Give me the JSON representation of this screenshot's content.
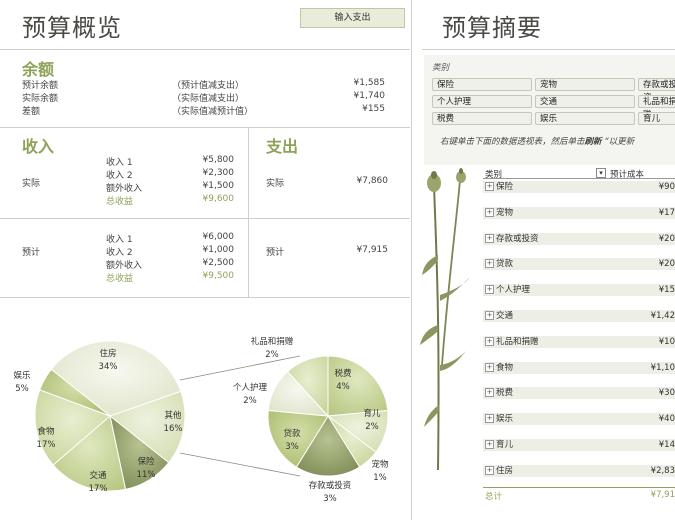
{
  "overview": {
    "title": "预算概览",
    "input_button": "输入支出",
    "balance": {
      "heading": "余额",
      "rows": [
        {
          "label": "预计余额",
          "note": "（预计值减支出）",
          "value": "¥1,585"
        },
        {
          "label": "实际余额",
          "note": "（实际值减支出）",
          "value": "¥1,740"
        },
        {
          "label": "差额",
          "note": "（实际值减预计值）",
          "value": "¥155"
        }
      ]
    },
    "income": {
      "heading": "收入",
      "actual": {
        "label": "实际",
        "items": [
          {
            "label": "收入 1",
            "value": "¥5,800"
          },
          {
            "label": "收入 2",
            "value": "¥2,300"
          },
          {
            "label": "额外收入",
            "value": "¥1,500"
          }
        ],
        "total_label": "总收益",
        "total_value": "¥9,600"
      },
      "projected": {
        "label": "预计",
        "items": [
          {
            "label": "收入 1",
            "value": "¥6,000"
          },
          {
            "label": "收入 2",
            "value": "¥1,000"
          },
          {
            "label": "额外收入",
            "value": "¥2,500"
          }
        ],
        "total_label": "总收益",
        "total_value": "¥9,500"
      }
    },
    "expense": {
      "heading": "支出",
      "actual": {
        "label": "实际",
        "value": "¥7,860"
      },
      "projected": {
        "label": "预计",
        "value": "¥7,915"
      }
    }
  },
  "chart_data": {
    "type": "pie",
    "main": {
      "slices": [
        {
          "label": "住房",
          "pct": "34%",
          "value": 34
        },
        {
          "label": "其他",
          "pct": "16%",
          "value": 16
        },
        {
          "label": "保险",
          "pct": "11%",
          "value": 11
        },
        {
          "label": "交通",
          "pct": "17%",
          "value": 17
        },
        {
          "label": "食物",
          "pct": "17%",
          "value": 17
        },
        {
          "label": "娱乐",
          "pct": "5%",
          "value": 5
        }
      ]
    },
    "other": {
      "slices": [
        {
          "label": "税费",
          "pct": "4%",
          "value": 4
        },
        {
          "label": "育儿",
          "pct": "2%",
          "value": 2
        },
        {
          "label": "宠物",
          "pct": "1%",
          "value": 1
        },
        {
          "label": "存款或投资",
          "pct": "3%",
          "value": 3
        },
        {
          "label": "贷款",
          "pct": "3%",
          "value": 3
        },
        {
          "label": "个人护理",
          "pct": "2%",
          "value": 2
        },
        {
          "label": "礼品和捐赠",
          "pct": "2%",
          "value": 2
        }
      ]
    },
    "colors": [
      "#eef0e2",
      "#dfe6c8",
      "#8f9c6a",
      "#c5d49a",
      "#d6e0b4",
      "#b9c88a"
    ]
  },
  "summary": {
    "title": "预算摘要",
    "filter_label": "类别",
    "slicers": [
      "保险",
      "宠物",
      "存款或投资",
      "个人护理",
      "交通",
      "礼品和捐赠",
      "税费",
      "娱乐",
      "育儿"
    ],
    "hint_before": "右键单击下面的数据透视表，然后单击",
    "hint_emph": "刷新",
    "hint_after": "以更新",
    "pivot": {
      "col_category": "类别",
      "col_cost": "预计成本",
      "rows": [
        {
          "label": "保险",
          "value": "¥90"
        },
        {
          "label": "宠物",
          "value": "¥17"
        },
        {
          "label": "存款或投资",
          "value": "¥20"
        },
        {
          "label": "贷款",
          "value": "¥20"
        },
        {
          "label": "个人护理",
          "value": "¥15"
        },
        {
          "label": "交通",
          "value": "¥1,42"
        },
        {
          "label": "礼品和捐赠",
          "value": "¥10"
        },
        {
          "label": "食物",
          "value": "¥1,10"
        },
        {
          "label": "税费",
          "value": "¥30"
        },
        {
          "label": "娱乐",
          "value": "¥40"
        },
        {
          "label": "育儿",
          "value": "¥14"
        },
        {
          "label": "住房",
          "value": "¥2,83"
        }
      ],
      "total_label": "总计",
      "total_value": "¥7,91"
    }
  }
}
